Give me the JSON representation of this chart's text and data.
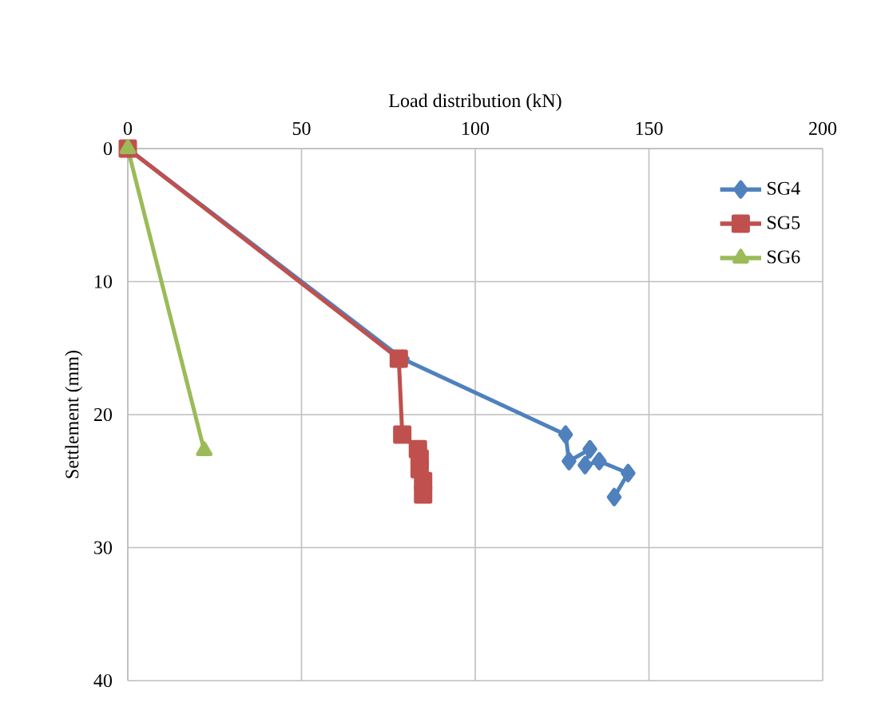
{
  "chart_data": {
    "type": "line",
    "xlabel": "Load distribution (kN)",
    "ylabel": "Settlement (mm)",
    "xlim": [
      0,
      200
    ],
    "xticks": [
      0,
      50,
      100,
      150,
      200
    ],
    "ylim": [
      40,
      0
    ],
    "yticks": [
      0,
      10,
      20,
      30,
      40
    ],
    "grid": true,
    "legend": "top right",
    "line_style": "solid",
    "series": [
      {
        "name": "SG4",
        "color": "#4f81bd",
        "marker": "diamond",
        "x": [
          0,
          79,
          126,
          127,
          133,
          131.6,
          135.7,
          144,
          140
        ],
        "values": [
          0,
          15.8,
          21.5,
          23.5,
          22.6,
          23.8,
          23.5,
          24.4,
          26.2
        ]
      },
      {
        "name": "SG5",
        "color": "#c0504d",
        "marker": "square",
        "x": [
          0,
          78,
          79,
          83.5,
          84,
          84,
          85,
          85
        ],
        "values": [
          0,
          15.8,
          21.5,
          22.6,
          23.3,
          24.1,
          25,
          26
        ]
      },
      {
        "name": "SG6",
        "color": "#9bbb59",
        "marker": "triangle",
        "x": [
          0,
          22
        ],
        "values": [
          0,
          22.7
        ]
      }
    ]
  }
}
